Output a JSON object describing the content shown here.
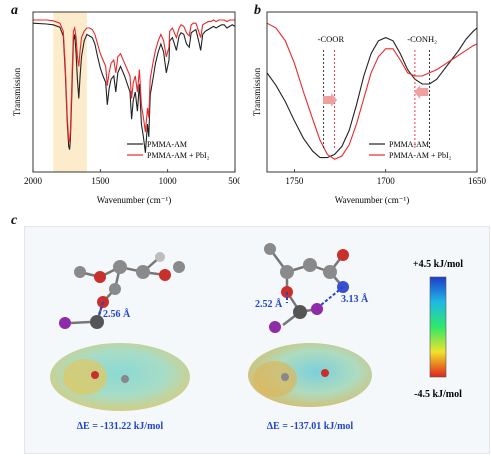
{
  "panels": {
    "a": "a",
    "b": "b",
    "c": "c"
  },
  "chart_data": [
    {
      "type": "line",
      "panel": "a",
      "xlabel": "Wavenumber (cm⁻¹)",
      "ylabel": "Transmission",
      "xlim": [
        2000,
        500
      ],
      "xticks": [
        "2000",
        "1500",
        "1000",
        "500"
      ],
      "highlight_band": [
        1850,
        1600
      ],
      "legend_position": "bottom-right",
      "series": [
        {
          "name": "PMMA-AM",
          "color": "#222222",
          "x": [
            2000,
            1900,
            1850,
            1800,
            1775,
            1760,
            1745,
            1735,
            1728,
            1722,
            1712,
            1700,
            1690,
            1680,
            1670,
            1660,
            1650,
            1640,
            1620,
            1600,
            1580,
            1560,
            1540,
            1520,
            1500,
            1480,
            1460,
            1448,
            1435,
            1420,
            1400,
            1385,
            1370,
            1350,
            1320,
            1300,
            1280,
            1268,
            1255,
            1240,
            1225,
            1210,
            1195,
            1180,
            1165,
            1150,
            1140,
            1130,
            1110,
            1090,
            1070,
            1050,
            1030,
            1010,
            990,
            985,
            965,
            950,
            935,
            915,
            900,
            880,
            860,
            840,
            825,
            810,
            790,
            770,
            755,
            740,
            720,
            700,
            680,
            660,
            640,
            620,
            600,
            580,
            560,
            540,
            520,
            500
          ],
          "y": [
            0.93,
            0.925,
            0.92,
            0.905,
            0.85,
            0.62,
            0.3,
            0.16,
            0.14,
            0.2,
            0.48,
            0.82,
            0.86,
            0.74,
            0.58,
            0.46,
            0.6,
            0.72,
            0.82,
            0.86,
            0.85,
            0.84,
            0.8,
            0.72,
            0.65,
            0.6,
            0.56,
            0.42,
            0.52,
            0.58,
            0.6,
            0.5,
            0.62,
            0.66,
            0.6,
            0.55,
            0.5,
            0.33,
            0.45,
            0.5,
            0.38,
            0.55,
            0.3,
            0.22,
            0.12,
            0.3,
            0.22,
            0.48,
            0.58,
            0.68,
            0.75,
            0.8,
            0.75,
            0.62,
            0.7,
            0.82,
            0.84,
            0.8,
            0.76,
            0.85,
            0.87,
            0.86,
            0.8,
            0.78,
            0.87,
            0.88,
            0.89,
            0.82,
            0.76,
            0.86,
            0.88,
            0.89,
            0.9,
            0.91,
            0.9,
            0.91,
            0.92,
            0.92,
            0.9,
            0.91,
            0.92,
            0.91
          ]
        },
        {
          "name": "PMMA-AM + PbI₂",
          "color": "#e8282b",
          "x": [
            2000,
            1900,
            1850,
            1800,
            1775,
            1760,
            1745,
            1735,
            1728,
            1722,
            1712,
            1700,
            1690,
            1680,
            1670,
            1660,
            1650,
            1640,
            1620,
            1600,
            1580,
            1560,
            1540,
            1520,
            1500,
            1480,
            1460,
            1448,
            1435,
            1420,
            1400,
            1385,
            1370,
            1350,
            1320,
            1300,
            1280,
            1268,
            1255,
            1240,
            1225,
            1210,
            1195,
            1180,
            1165,
            1150,
            1140,
            1130,
            1110,
            1090,
            1070,
            1050,
            1030,
            1010,
            990,
            985,
            965,
            950,
            935,
            915,
            900,
            880,
            860,
            840,
            825,
            810,
            790,
            770,
            755,
            740,
            720,
            700,
            680,
            660,
            640,
            620,
            600,
            580,
            560,
            540,
            520,
            500
          ],
          "y": [
            0.95,
            0.95,
            0.945,
            0.93,
            0.88,
            0.66,
            0.34,
            0.2,
            0.19,
            0.26,
            0.55,
            0.88,
            0.9,
            0.84,
            0.72,
            0.66,
            0.76,
            0.84,
            0.88,
            0.9,
            0.9,
            0.89,
            0.86,
            0.8,
            0.74,
            0.7,
            0.66,
            0.54,
            0.62,
            0.68,
            0.7,
            0.62,
            0.72,
            0.74,
            0.68,
            0.64,
            0.6,
            0.46,
            0.56,
            0.6,
            0.5,
            0.64,
            0.42,
            0.34,
            0.25,
            0.4,
            0.34,
            0.58,
            0.68,
            0.76,
            0.82,
            0.86,
            0.82,
            0.72,
            0.78,
            0.88,
            0.9,
            0.87,
            0.84,
            0.9,
            0.92,
            0.91,
            0.87,
            0.85,
            0.92,
            0.93,
            0.93,
            0.88,
            0.84,
            0.92,
            0.93,
            0.94,
            0.94,
            0.95,
            0.94,
            0.95,
            0.95,
            0.95,
            0.94,
            0.95,
            0.95,
            0.95
          ]
        }
      ]
    },
    {
      "type": "line",
      "panel": "b",
      "xlabel": "Wavenumber (cm⁻¹)",
      "ylabel": "Transmission",
      "xlim": [
        1765,
        1650
      ],
      "xticks": [
        "1750",
        "1700",
        "1650"
      ],
      "annotations": [
        {
          "text": "-COOR",
          "x": 1730
        },
        {
          "text": "-CONH₂",
          "x": 1680
        }
      ],
      "reference_lines": [
        {
          "x": 1734,
          "color": "#222222"
        },
        {
          "x": 1728,
          "color": "#e8282b"
        },
        {
          "x": 1684,
          "color": "#e8282b"
        },
        {
          "x": 1676,
          "color": "#222222"
        }
      ],
      "legend_position": "bottom-right",
      "series": [
        {
          "name": "PMMA-AM",
          "color": "#222222",
          "x": [
            1765,
            1760,
            1755,
            1750,
            1745,
            1740,
            1736,
            1732,
            1728,
            1724,
            1720,
            1716,
            1712,
            1708,
            1704,
            1700,
            1696,
            1692,
            1688,
            1684,
            1680,
            1676,
            1672,
            1668,
            1664,
            1660,
            1656,
            1652,
            1650
          ],
          "y": [
            0.62,
            0.54,
            0.44,
            0.32,
            0.21,
            0.13,
            0.09,
            0.09,
            0.11,
            0.16,
            0.26,
            0.42,
            0.6,
            0.74,
            0.82,
            0.84,
            0.82,
            0.74,
            0.64,
            0.58,
            0.55,
            0.55,
            0.58,
            0.64,
            0.7,
            0.76,
            0.83,
            0.88,
            0.9
          ]
        },
        {
          "name": "PMMA-AM + PbI₂",
          "color": "#e8282b",
          "x": [
            1765,
            1760,
            1755,
            1750,
            1745,
            1740,
            1736,
            1732,
            1728,
            1724,
            1720,
            1716,
            1712,
            1708,
            1704,
            1700,
            1696,
            1692,
            1688,
            1684,
            1680,
            1676,
            1672,
            1668,
            1664,
            1660,
            1656,
            1652,
            1650
          ],
          "y": [
            0.93,
            0.9,
            0.82,
            0.68,
            0.5,
            0.33,
            0.2,
            0.11,
            0.08,
            0.1,
            0.17,
            0.3,
            0.46,
            0.62,
            0.72,
            0.77,
            0.77,
            0.7,
            0.62,
            0.6,
            0.6,
            0.62,
            0.64,
            0.67,
            0.7,
            0.73,
            0.76,
            0.79,
            0.8
          ]
        }
      ]
    }
  ],
  "panel_c": {
    "colorbar": {
      "max_label": "+4.5 kJ/mol",
      "min_label": "-4.5 kJ/mol"
    },
    "left_structure": {
      "bond_label": "2.56 Å",
      "energy_label": "ΔE = -131.22 kJ/mol"
    },
    "right_structure": {
      "bond_labels": [
        "2.52 Å",
        "3.13 Å"
      ],
      "energy_label": "ΔE = -137.01 kJ/mol"
    }
  }
}
